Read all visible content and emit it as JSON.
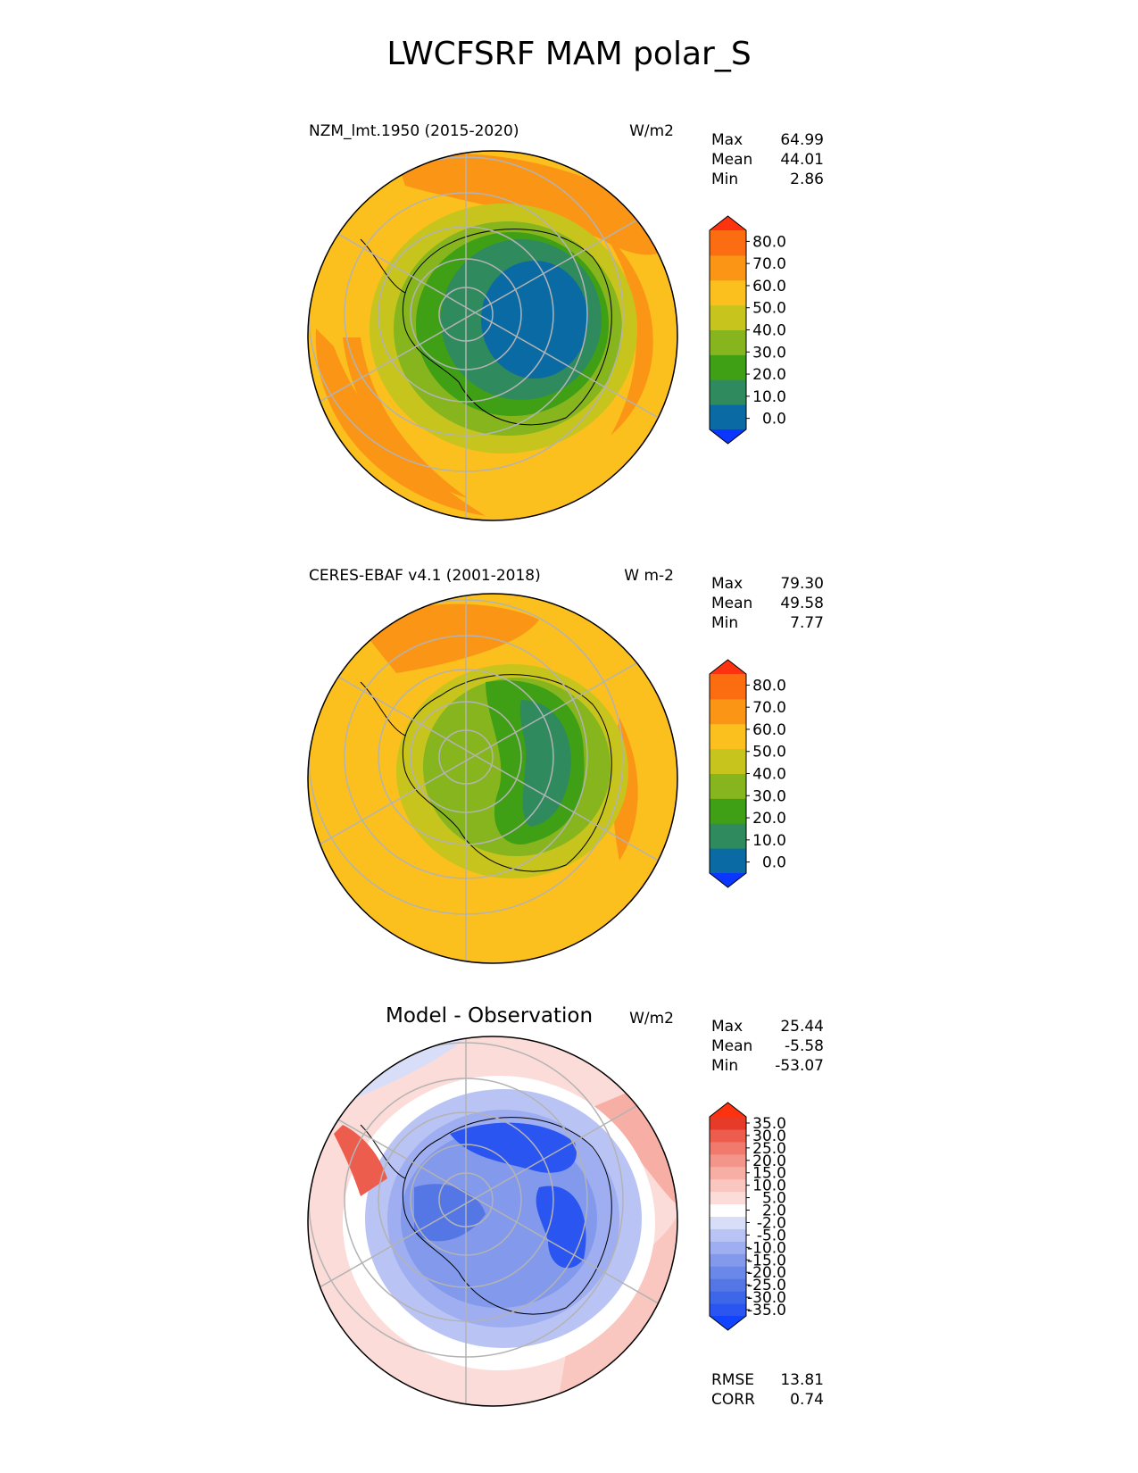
{
  "figure": {
    "title": "LWCFSRF MAM polar_S"
  },
  "panels": [
    {
      "name": "test",
      "title": "NZM_lmt.1950 (2015-2020)",
      "units": "W/m2",
      "stats": [
        {
          "label": "Max",
          "value": "64.99"
        },
        {
          "label": "Mean",
          "value": "44.01"
        },
        {
          "label": "Min",
          "value": "2.86"
        }
      ]
    },
    {
      "name": "reference",
      "title": "CERES-EBAF v4.1 (2001-2018)",
      "units": "W m-2",
      "stats": [
        {
          "label": "Max",
          "value": "79.30"
        },
        {
          "label": "Mean",
          "value": "49.58"
        },
        {
          "label": "Min",
          "value": "7.77"
        }
      ]
    },
    {
      "name": "difference",
      "title": "Model - Observation",
      "units": "W/m2",
      "stats": [
        {
          "label": "Max",
          "value": "25.44"
        },
        {
          "label": "Mean",
          "value": "-5.58"
        },
        {
          "label": "Min",
          "value": "-53.07"
        }
      ],
      "metrics": [
        {
          "label": "RMSE",
          "value": "13.81"
        },
        {
          "label": "CORR",
          "value": "0.74"
        }
      ]
    }
  ],
  "chart_data": [
    {
      "type": "heatmap",
      "projection": "south-polar-stereographic",
      "title": "NZM_lmt.1950 (2015-2020)",
      "units": "W/m2",
      "colorbar": {
        "ticks": [
          "80.0",
          "70.0",
          "60.0",
          "50.0",
          "40.0",
          "30.0",
          "20.0",
          "10.0",
          "0.0"
        ],
        "colors": [
          "#0b36ff",
          "#0a6aa3",
          "#2f8a5e",
          "#40a015",
          "#86b51e",
          "#c7c51d",
          "#fbc01e",
          "#fb9516",
          "#fb6d10",
          "#fd3310"
        ],
        "extend": "both"
      }
    },
    {
      "type": "heatmap",
      "projection": "south-polar-stereographic",
      "title": "CERES-EBAF v4.1 (2001-2018)",
      "units": "W m-2",
      "colorbar": {
        "ticks": [
          "80.0",
          "70.0",
          "60.0",
          "50.0",
          "40.0",
          "30.0",
          "20.0",
          "10.0",
          "0.0"
        ],
        "colors": [
          "#0b36ff",
          "#0a6aa3",
          "#2f8a5e",
          "#40a015",
          "#86b51e",
          "#c7c51d",
          "#fbc01e",
          "#fb9516",
          "#fb6d10",
          "#fd3310"
        ],
        "extend": "both"
      }
    },
    {
      "type": "heatmap",
      "projection": "south-polar-stereographic",
      "title": "Model - Observation",
      "units": "W/m2",
      "colorbar": {
        "ticks": [
          "35.0",
          "30.0",
          "25.0",
          "20.0",
          "15.0",
          "10.0",
          "5.0",
          "2.0",
          "-2.0",
          "-5.0",
          "-10.0",
          "-15.0",
          "-20.0",
          "-25.0",
          "-30.0",
          "-35.0"
        ],
        "colors": [
          "#1244ff",
          "#2a55f0",
          "#3e66e8",
          "#5577e6",
          "#6a88ea",
          "#8399ec",
          "#9eaef0",
          "#bac4f4",
          "#d8def8",
          "#ffffff",
          "#fcdcd8",
          "#f9c6c0",
          "#f6aea5",
          "#f3958a",
          "#f07a6d",
          "#ec5d4e",
          "#e83a28",
          "#fd3310"
        ],
        "extend": "both"
      }
    }
  ]
}
